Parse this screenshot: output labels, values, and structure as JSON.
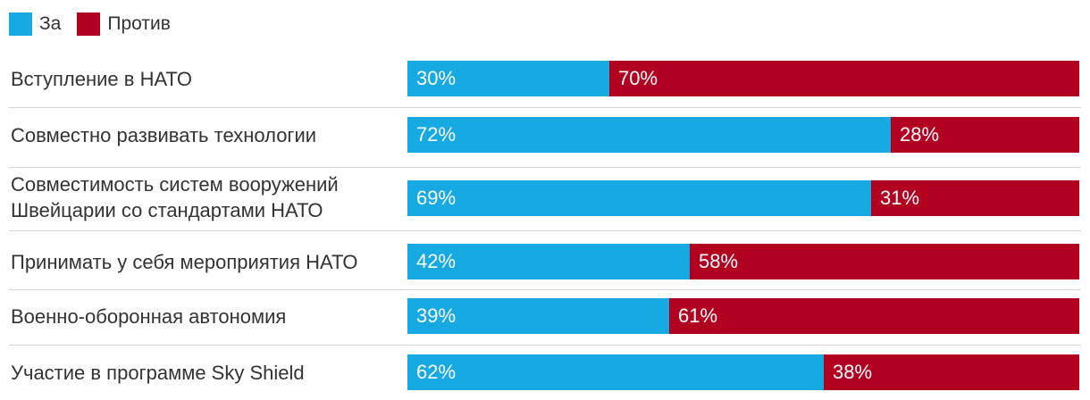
{
  "colors": {
    "for": "#16a9e2",
    "against": "#b20020"
  },
  "chart_data": {
    "type": "bar",
    "orientation": "horizontal",
    "stacked": true,
    "percent": true,
    "legend_position": "top-left",
    "categories": [
      "Вступление в НАТО",
      "Совместно развивать технологии",
      "Совместимость систем вооружений Швейцарии со стандартами НАТО",
      "Принимать у себя мероприятия НАТО",
      "Военно-оборонная автономия",
      "Участие в программе Sky Shield"
    ],
    "series": [
      {
        "name": "За",
        "values": [
          30,
          72,
          69,
          42,
          39,
          62
        ]
      },
      {
        "name": "Против",
        "values": [
          70,
          28,
          31,
          58,
          61,
          38
        ]
      }
    ],
    "xlim": [
      0,
      100
    ]
  }
}
